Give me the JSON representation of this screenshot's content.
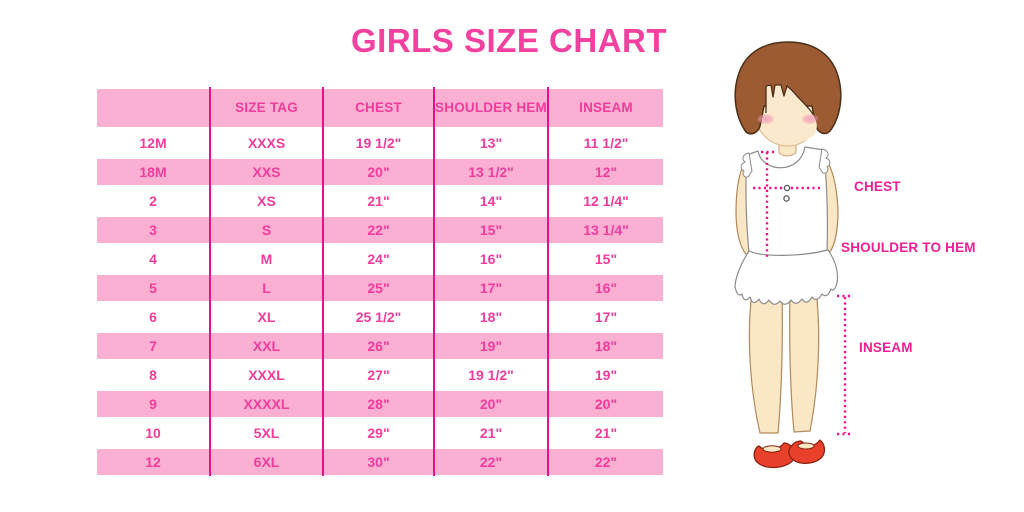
{
  "page_title": "GIRLS SIZE CHART",
  "chart_data": {
    "type": "table",
    "title": "GIRLS SIZE CHART",
    "headers": [
      "",
      "SIZE TAG",
      "CHEST",
      "SHOULDER HEM",
      "INSEAM"
    ],
    "rows": [
      [
        "12M",
        "XXXS",
        "19 1/2\"",
        "13\"",
        "11 1/2\""
      ],
      [
        "18M",
        "XXS",
        "20\"",
        "13 1/2\"",
        "12\""
      ],
      [
        "2",
        "XS",
        "21\"",
        "14\"",
        "12 1/4\""
      ],
      [
        "3",
        "S",
        "22\"",
        "15\"",
        "13 1/4\""
      ],
      [
        "4",
        "M",
        "24\"",
        "16\"",
        "15\""
      ],
      [
        "5",
        "L",
        "25\"",
        "17\"",
        "16\""
      ],
      [
        "6",
        "XL",
        "25 1/2\"",
        "18\"",
        "17\""
      ],
      [
        "7",
        "XXL",
        "26\"",
        "19\"",
        "18\""
      ],
      [
        "8",
        "XXXL",
        "27\"",
        "19 1/2\"",
        "19\""
      ],
      [
        "9",
        "XXXXL",
        "28\"",
        "20\"",
        "20\""
      ],
      [
        "10",
        "5XL",
        "29\"",
        "21\"",
        "21\""
      ],
      [
        "12",
        "6XL",
        "30\"",
        "22\"",
        "22\""
      ]
    ],
    "stripe_pattern": "header pink; data rows alternate white/pink starting white",
    "legend_position": "none",
    "grid": "vertical magenta dividers only"
  },
  "figure": {
    "labels": {
      "chest": "CHEST",
      "shoulder_to_hem": "SHOULDER TO HEM",
      "inseam": "INSEAM"
    }
  },
  "colors": {
    "title_pink": "#F2419E",
    "row_pink": "#FBAFD3",
    "divider_magenta": "#E3128C",
    "cell_text_pink": "#EE3D9B",
    "label_magenta": "#EE1E96",
    "dotted_line_pink": "#F0148C",
    "hair_brown": "#9C5B33",
    "skin": "#FAE7C5",
    "shoe_red": "#E8402A"
  }
}
